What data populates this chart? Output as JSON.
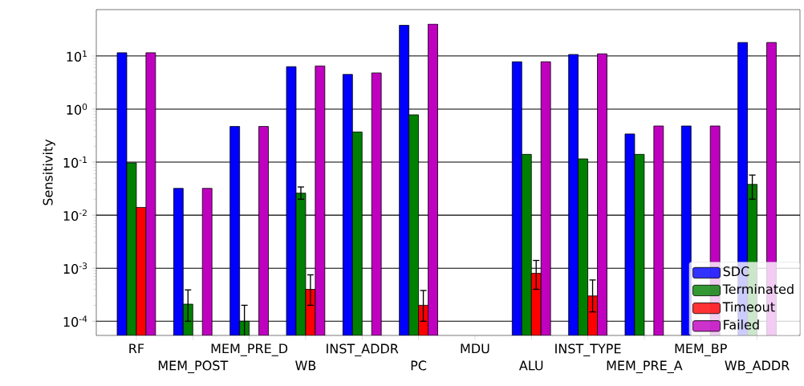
{
  "chart_data": {
    "type": "bar",
    "ylabel": "Sensitivity",
    "categories": [
      "RF",
      "MEM_POST",
      "MEM_PRE_D",
      "WB",
      "INST_ADDR",
      "PC",
      "MDU",
      "ALU",
      "INST_TYPE",
      "MEM_PRE_A",
      "MEM_BP",
      "WB_ADDR"
    ],
    "series": [
      {
        "name": "SDC",
        "color": "#0000ff",
        "values": [
          11.5,
          0.032,
          0.47,
          6.3,
          4.5,
          38,
          null,
          7.8,
          10.7,
          0.34,
          0.48,
          18
        ]
      },
      {
        "name": "Terminated",
        "color": "#008000",
        "values": [
          0.097,
          0.00021,
          0.0001,
          0.026,
          0.37,
          0.78,
          null,
          0.14,
          0.115,
          0.14,
          null,
          0.038
        ],
        "errors": [
          null,
          [
            0.0001,
            0.00039
          ],
          [
            5e-05,
            0.0002
          ],
          [
            0.02,
            0.034
          ],
          null,
          null,
          null,
          null,
          null,
          null,
          null,
          [
            0.02,
            0.057
          ]
        ]
      },
      {
        "name": "Timeout",
        "color": "#ff0000",
        "values": [
          0.014,
          null,
          null,
          0.0004,
          null,
          0.0002,
          null,
          0.0008,
          0.0003,
          null,
          null,
          null
        ],
        "errors": [
          null,
          null,
          null,
          [
            0.0002,
            0.00075
          ],
          null,
          [
            0.0001,
            0.00038
          ],
          null,
          [
            0.0004,
            0.0014
          ],
          [
            0.00015,
            0.0006
          ],
          null,
          null,
          null
        ]
      },
      {
        "name": "Failed",
        "color": "#bf00bf",
        "values": [
          11.5,
          0.032,
          0.47,
          6.5,
          4.8,
          40,
          null,
          7.8,
          11,
          0.48,
          0.48,
          18
        ]
      }
    ],
    "log": "y",
    "ylim": [
      5.4e-05,
      75
    ],
    "yticks": [
      {
        "value": 0.0001,
        "label": "10$^{-4}$"
      },
      {
        "value": 0.001,
        "label": "10$^{-3}$"
      },
      {
        "value": 0.01,
        "label": "10$^{-2}$"
      },
      {
        "value": 0.1,
        "label": "10$^{-1}$"
      },
      {
        "value": 1,
        "label": "10$^{0}$"
      },
      {
        "value": 10,
        "label": "10$^{1}$"
      }
    ],
    "grid": "y",
    "legend": "bottom right"
  }
}
